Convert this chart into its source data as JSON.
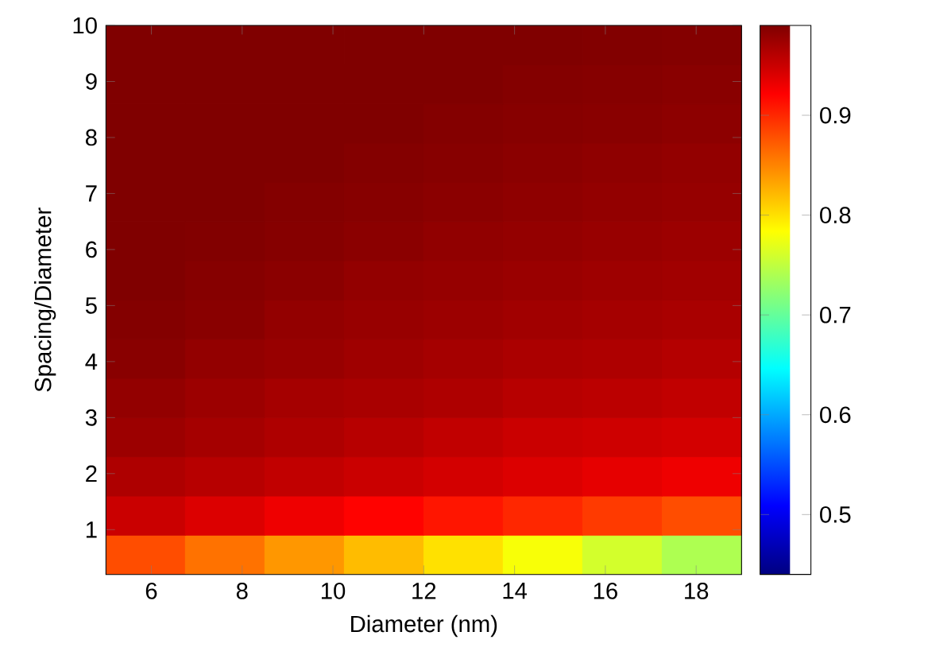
{
  "chart_data": {
    "type": "heatmap",
    "xlabel": "Diameter (nm)",
    "ylabel": "Spacing/Diameter",
    "x": [
      5.875,
      7.625,
      9.375,
      11.125,
      12.875,
      14.625,
      16.375,
      18.125
    ],
    "y": [
      9.65,
      8.95,
      8.25,
      7.55,
      6.85,
      6.15,
      5.45,
      4.75,
      4.05,
      3.35,
      2.65,
      1.95,
      1.25,
      0.55
    ],
    "cells": [
      [
        0.99,
        0.99,
        0.99,
        0.99,
        0.99,
        0.99,
        0.989,
        0.988
      ],
      [
        0.99,
        0.99,
        0.99,
        0.99,
        0.99,
        0.988,
        0.987,
        0.985
      ],
      [
        0.99,
        0.99,
        0.99,
        0.99,
        0.988,
        0.986,
        0.985,
        0.983
      ],
      [
        0.99,
        0.99,
        0.99,
        0.988,
        0.986,
        0.984,
        0.982,
        0.98
      ],
      [
        0.99,
        0.99,
        0.988,
        0.986,
        0.984,
        0.982,
        0.98,
        0.978
      ],
      [
        0.99,
        0.989,
        0.987,
        0.984,
        0.981,
        0.979,
        0.977,
        0.975
      ],
      [
        0.99,
        0.987,
        0.984,
        0.98,
        0.978,
        0.976,
        0.974,
        0.972
      ],
      [
        0.988,
        0.985,
        0.98,
        0.977,
        0.975,
        0.972,
        0.97,
        0.968
      ],
      [
        0.985,
        0.98,
        0.977,
        0.973,
        0.97,
        0.967,
        0.965,
        0.962
      ],
      [
        0.98,
        0.975,
        0.97,
        0.968,
        0.965,
        0.96,
        0.958,
        0.955
      ],
      [
        0.975,
        0.97,
        0.965,
        0.96,
        0.955,
        0.95,
        0.948,
        0.945
      ],
      [
        0.965,
        0.96,
        0.955,
        0.95,
        0.945,
        0.94,
        0.935,
        0.93
      ],
      [
        0.95,
        0.94,
        0.93,
        0.92,
        0.91,
        0.9,
        0.89,
        0.88
      ],
      [
        0.88,
        0.86,
        0.84,
        0.82,
        0.8,
        0.78,
        0.76,
        0.74
      ]
    ],
    "xlim": [
      5,
      19
    ],
    "xticks": [
      6,
      8,
      10,
      12,
      14,
      16,
      18
    ],
    "ylim": [
      0.2,
      10
    ],
    "yticks": [
      1,
      2,
      3,
      4,
      5,
      6,
      7,
      8,
      9,
      10
    ],
    "clim": [
      0.44,
      0.99
    ],
    "cticks": [
      0.5,
      0.6,
      0.7,
      0.8,
      0.9
    ]
  }
}
